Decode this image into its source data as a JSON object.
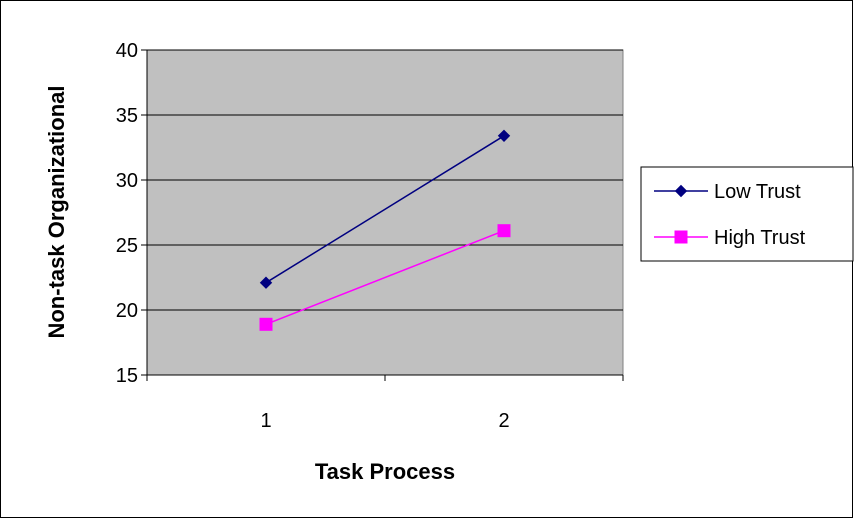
{
  "chart_data": {
    "type": "line",
    "title": "",
    "xlabel": "Task Process",
    "ylabel": "Non-task Organizational",
    "categories": [
      "1",
      "2"
    ],
    "ylim": [
      15,
      40
    ],
    "yticks": [
      15,
      20,
      25,
      30,
      35,
      40
    ],
    "grid": true,
    "legend_position": "right",
    "series": [
      {
        "name": "Low Trust",
        "values": [
          22.1,
          33.4
        ],
        "color": "#000080",
        "marker": "diamond"
      },
      {
        "name": "High Trust",
        "values": [
          18.9,
          26.1
        ],
        "color": "#ff00ff",
        "marker": "square"
      }
    ],
    "plot_background": "#c0c0c0"
  }
}
